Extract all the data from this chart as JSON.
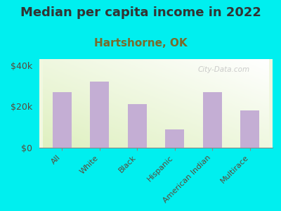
{
  "title": "Median per capita income in 2022",
  "subtitle": "Hartshorne, OK",
  "categories": [
    "All",
    "White",
    "Black",
    "Hispanic",
    "American Indian",
    "Multirace"
  ],
  "values": [
    27000,
    32000,
    21000,
    9000,
    27000,
    18000
  ],
  "bar_color": "#c4aed4",
  "background_outer": "#00efef",
  "title_color": "#333333",
  "subtitle_color": "#7a6a2a",
  "axis_label_color": "#5a4a3a",
  "ytick_labels": [
    "$0",
    "$20k",
    "$40k"
  ],
  "ytick_values": [
    0,
    20000,
    40000
  ],
  "ylim": [
    0,
    43000
  ],
  "watermark": "City-Data.com",
  "watermark_color": "#bbbbbb",
  "title_fontsize": 13,
  "subtitle_fontsize": 11
}
